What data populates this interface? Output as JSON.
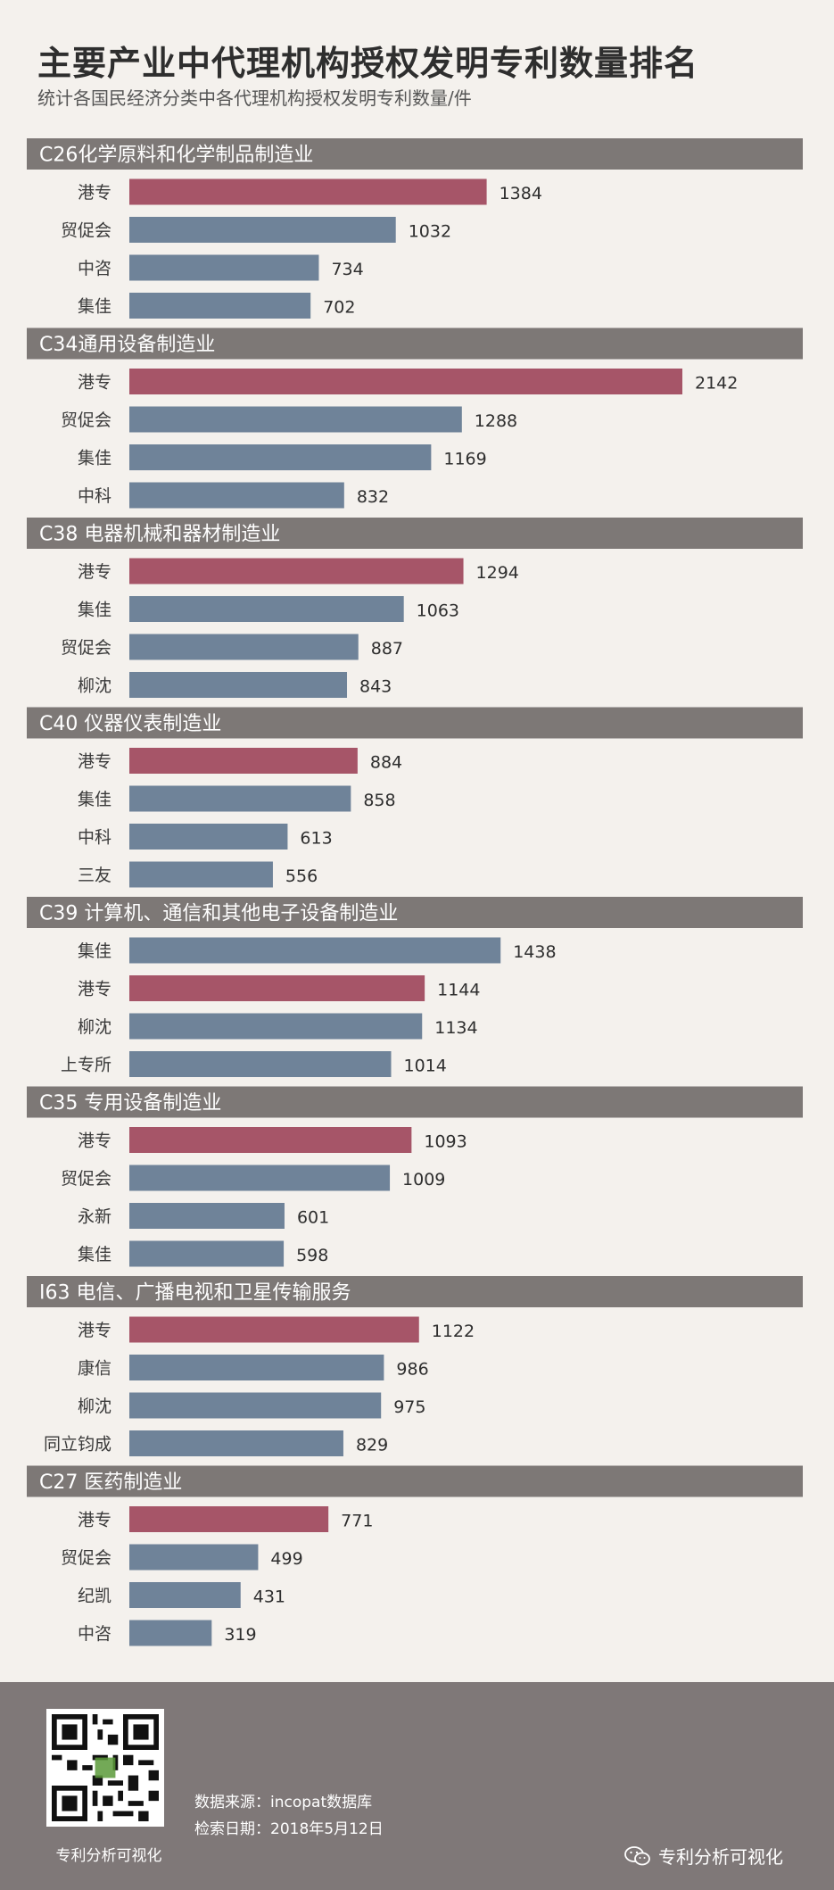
{
  "header": {
    "title": "主要产业中代理机构授权发明专利数量排名",
    "subtitle": "统计各国民经济分类中各代理机构授权发明专利数量/件"
  },
  "colors": {
    "highlight": "#a65568",
    "bar": "#6f8399",
    "section_bg": "#7d7876",
    "section_text": "#ffffff"
  },
  "chart_data": {
    "type": "bar",
    "orientation": "horizontal",
    "highlight_label": "港专",
    "groups": [
      {
        "title": "C26化学原料和化学制品制造业",
        "labels": [
          "港专",
          "贸促会",
          "中咨",
          "集佳"
        ],
        "values": [
          1384,
          1032,
          734,
          702
        ]
      },
      {
        "title": "C34通用设备制造业",
        "labels": [
          "港专",
          "贸促会",
          "集佳",
          "中科"
        ],
        "values": [
          2142,
          1288,
          1169,
          832
        ]
      },
      {
        "title": "C38 电器机械和器材制造业",
        "labels": [
          "港专",
          "集佳",
          "贸促会",
          "柳沈"
        ],
        "values": [
          1294,
          1063,
          887,
          843
        ]
      },
      {
        "title": "C40 仪器仪表制造业",
        "labels": [
          "港专",
          "集佳",
          "中科",
          "三友"
        ],
        "values": [
          884,
          858,
          613,
          556
        ]
      },
      {
        "title": "C39 计算机、通信和其他电子设备制造业",
        "labels": [
          "集佳",
          "港专",
          "柳沈",
          "上专所"
        ],
        "values": [
          1438,
          1144,
          1134,
          1014
        ]
      },
      {
        "title": "C35 专用设备制造业",
        "labels": [
          "港专",
          "贸促会",
          "永新",
          "集佳"
        ],
        "values": [
          1093,
          1009,
          601,
          598
        ]
      },
      {
        "title": "I63 电信、广播电视和卫星传输服务",
        "labels": [
          "港专",
          "康信",
          "柳沈",
          "同立钧成"
        ],
        "values": [
          1122,
          986,
          975,
          829
        ]
      },
      {
        "title": "C27 医药制造业",
        "labels": [
          "港专",
          "贸促会",
          "纪凯",
          "中咨"
        ],
        "values": [
          771,
          499,
          431,
          319
        ]
      }
    ]
  },
  "footer": {
    "qr_caption": "专利分析可视化",
    "source": "数据来源：incopat数据库",
    "date": "检索日期：2018年5月12日",
    "brand": "专利分析可视化",
    "brand_icon": "wechat-icon"
  }
}
